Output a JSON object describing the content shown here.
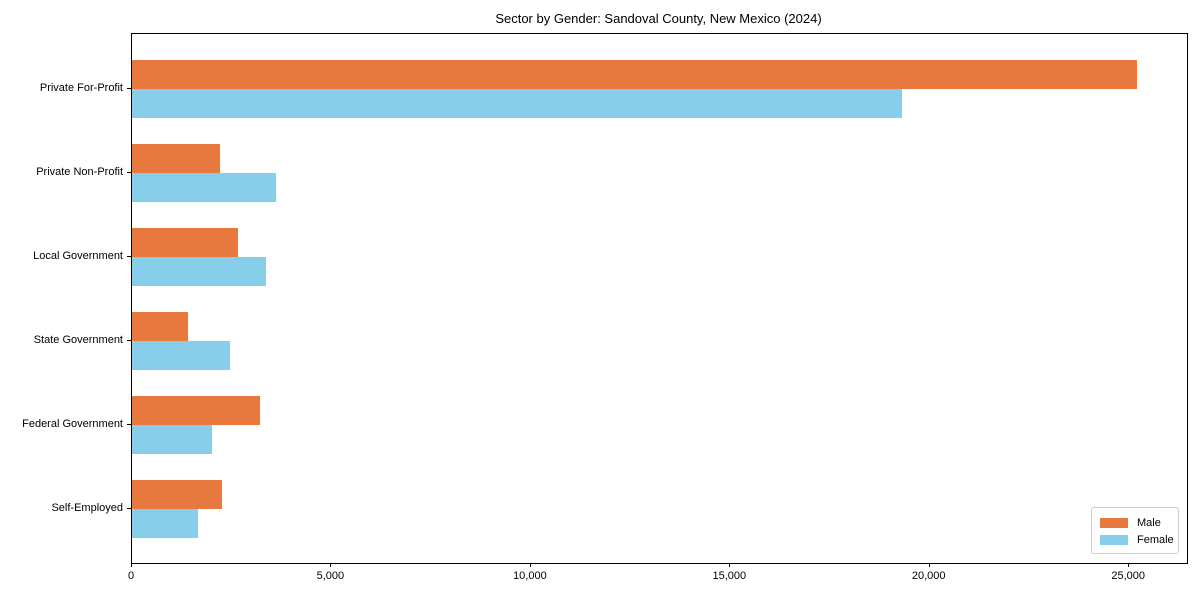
{
  "chart_data": {
    "type": "bar",
    "orientation": "horizontal",
    "title": "Sector by Gender: Sandoval County, New Mexico (2024)",
    "xlabel": "",
    "ylabel": "",
    "categories": [
      "Private For-Profit",
      "Private Non-Profit",
      "Local Government",
      "State Government",
      "Federal Government",
      "Self-Employed"
    ],
    "series": [
      {
        "name": "Male",
        "color": "#E8793E",
        "values": [
          25200,
          2200,
          2650,
          1400,
          3200,
          2250
        ]
      },
      {
        "name": "Female",
        "color": "#87CEEB",
        "values": [
          19300,
          3600,
          3350,
          2450,
          2000,
          1650
        ]
      }
    ],
    "xlim": [
      0,
      26450
    ],
    "x_ticks": [
      0,
      5000,
      10000,
      15000,
      20000,
      25000
    ],
    "x_tick_labels": [
      "0",
      "5,000",
      "10,000",
      "15,000",
      "20,000",
      "25,000"
    ],
    "grid": false,
    "legend": {
      "position": "lower right",
      "entries": [
        "Male",
        "Female"
      ]
    }
  }
}
